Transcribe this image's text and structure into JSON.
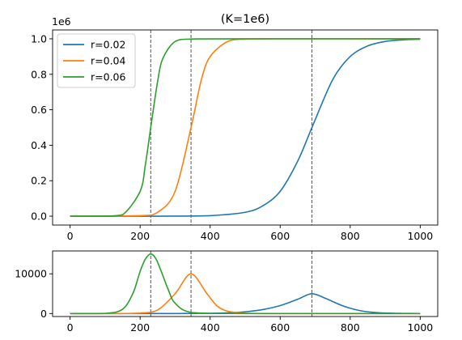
{
  "chart_data": [
    {
      "type": "line",
      "title": "(K=1e6)",
      "offset_text": "1e6",
      "xlim": [
        -50,
        1050
      ],
      "ylim": [
        -0.05,
        1.05
      ],
      "x_ticks": [
        0,
        200,
        400,
        600,
        800,
        1000
      ],
      "y_ticks": [
        0.0,
        0.2,
        0.4,
        0.6,
        0.8,
        1.0
      ],
      "y_tick_labels": [
        "0.0",
        "0.2",
        "0.4",
        "0.6",
        "0.8",
        "1.0"
      ],
      "legend_position": "top-left",
      "grid": false,
      "vlines": [
        230.3,
        345.4,
        690.8
      ],
      "series": [
        {
          "name": "r=0.02",
          "color": "#1f77b4",
          "x": [
            0,
            100,
            200,
            300,
            400,
            500,
            550,
            600,
            650,
            690.8,
            750,
            800,
            850,
            900,
            950,
            1000
          ],
          "y": [
            1e-06,
            7e-06,
            5.5e-05,
            0.0004,
            0.003,
            0.022,
            0.058,
            0.14,
            0.31,
            0.5,
            0.77,
            0.9,
            0.96,
            0.985,
            0.994,
            0.998
          ]
        },
        {
          "name": "r=0.04",
          "color": "#ff7f0e",
          "x": [
            0,
            200,
            250,
            300,
            345.4,
            375,
            400,
            450,
            500,
            600,
            800,
            1000
          ],
          "y": [
            1e-06,
            0.003,
            0.022,
            0.14,
            0.5,
            0.77,
            0.9,
            0.985,
            0.998,
            1.0,
            1.0,
            1.0
          ]
        },
        {
          "name": "r=0.06",
          "color": "#2ca02c",
          "x": [
            0,
            100,
            150,
            200,
            215,
            230.3,
            250,
            265,
            300,
            350,
            500,
            1000
          ],
          "y": [
            1e-06,
            0.0004,
            0.008,
            0.14,
            0.29,
            0.5,
            0.76,
            0.89,
            0.985,
            0.999,
            1.0,
            1.0
          ]
        }
      ]
    },
    {
      "type": "line",
      "xlim": [
        -50,
        1050
      ],
      "ylim": [
        -750,
        15750
      ],
      "x_ticks": [
        0,
        200,
        400,
        600,
        800,
        1000
      ],
      "y_ticks": [
        0,
        10000
      ],
      "grid": false,
      "vlines": [
        230.3,
        345.4,
        690.8
      ],
      "series": [
        {
          "name": "r=0.02",
          "color": "#1f77b4",
          "x": [
            0,
            300,
            400,
            450,
            500,
            550,
            600,
            650,
            690.8,
            730,
            780,
            830,
            880,
            950,
            1000
          ],
          "y": [
            0,
            10,
            60,
            180,
            450,
            1000,
            2000,
            3600,
            5000,
            3800,
            1900,
            700,
            220,
            40,
            10
          ]
        },
        {
          "name": "r=0.04",
          "color": "#ff7f0e",
          "x": [
            0,
            150,
            200,
            250,
            300,
            345.4,
            390,
            420,
            450,
            500,
            550,
            700,
            1000
          ],
          "y": [
            0,
            10,
            100,
            900,
            5000,
            10000,
            5100,
            1900,
            600,
            80,
            10,
            0,
            0
          ]
        },
        {
          "name": "r=0.06",
          "color": "#2ca02c",
          "x": [
            0,
            100,
            150,
            180,
            200,
            215,
            230.3,
            245,
            260,
            280,
            300,
            350,
            500,
            1000
          ],
          "y": [
            0,
            40,
            1100,
            5200,
            10600,
            13700,
            15000,
            13800,
            10700,
            6100,
            2600,
            230,
            0,
            0
          ]
        }
      ]
    }
  ]
}
